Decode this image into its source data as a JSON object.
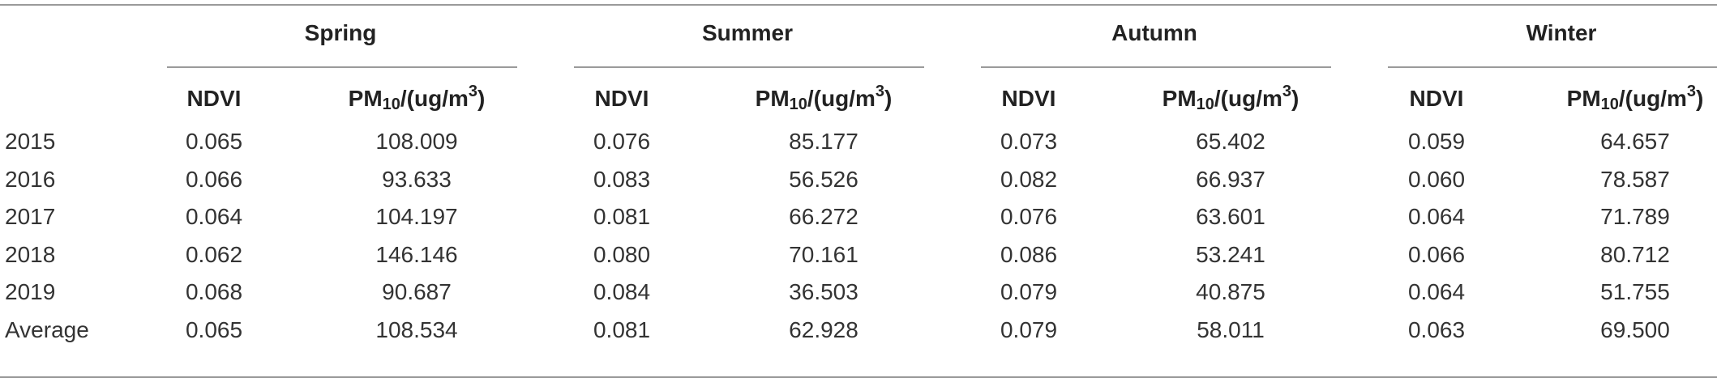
{
  "table": {
    "groups": [
      "Spring",
      "Summer",
      "Autumn",
      "Winter"
    ],
    "subheaders": {
      "ndvi": "NDVI",
      "pm_prefix": "PM",
      "pm_sub": "10",
      "pm_mid": "/(ug/m",
      "pm_sup": "3",
      "pm_suffix": ")"
    },
    "rows": [
      {
        "year": "2015",
        "cells": [
          "0.065",
          "108.009",
          "0.076",
          "85.177",
          "0.073",
          "65.402",
          "0.059",
          "64.657"
        ]
      },
      {
        "year": "2016",
        "cells": [
          "0.066",
          "93.633",
          "0.083",
          "56.526",
          "0.082",
          "66.937",
          "0.060",
          "78.587"
        ]
      },
      {
        "year": "2017",
        "cells": [
          "0.064",
          "104.197",
          "0.081",
          "66.272",
          "0.076",
          "63.601",
          "0.064",
          "71.789"
        ]
      },
      {
        "year": "2018",
        "cells": [
          "0.062",
          "146.146",
          "0.080",
          "70.161",
          "0.086",
          "53.241",
          "0.066",
          "80.712"
        ]
      },
      {
        "year": "2019",
        "cells": [
          "0.068",
          "90.687",
          "0.084",
          "36.503",
          "0.079",
          "40.875",
          "0.064",
          "51.755"
        ]
      },
      {
        "year": "Average",
        "cells": [
          "0.065",
          "108.534",
          "0.081",
          "62.928",
          "0.079",
          "58.011",
          "0.063",
          "69.500"
        ]
      }
    ]
  }
}
